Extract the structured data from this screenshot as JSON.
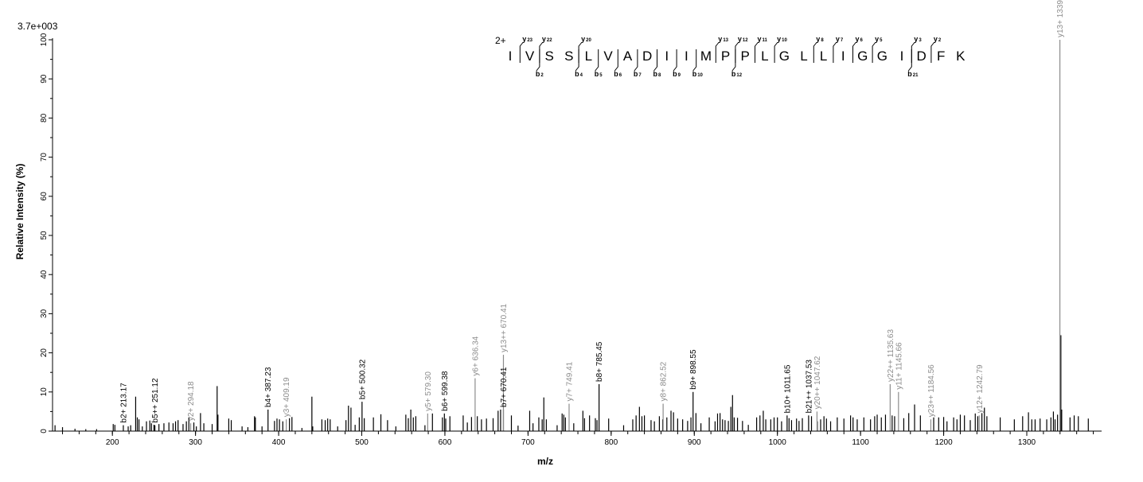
{
  "chart_data": {
    "type": "bar",
    "title": "",
    "scale_label": "3.7e+003",
    "xlabel": "m/z",
    "ylabel": "Relative   Intensity (%)",
    "xlim": [
      128,
      1390
    ],
    "ylim": [
      0,
      100
    ],
    "x_ticks": [
      200,
      300,
      400,
      500,
      600,
      700,
      800,
      900,
      1000,
      1100,
      1200,
      1300
    ],
    "y_ticks": [
      0,
      10,
      20,
      30,
      40,
      50,
      60,
      70,
      80,
      90,
      100
    ],
    "x_minor_step": 20,
    "grid": false,
    "peptide": {
      "charge": "2+",
      "sequence": [
        "I",
        "V",
        "S",
        "S",
        "L",
        "V",
        "A",
        "D",
        "I",
        "I",
        "M",
        "P",
        "P",
        "L",
        "G",
        "L",
        "L",
        "I",
        "G",
        "G",
        "I",
        "D",
        "F",
        "K"
      ],
      "y_ions": [
        {
          "after": 1,
          "label": "y",
          "num": "23"
        },
        {
          "after": 2,
          "label": "y",
          "num": "22"
        },
        {
          "after": 4,
          "label": "y",
          "num": "20"
        },
        {
          "after": 11,
          "label": "y",
          "num": "13"
        },
        {
          "after": 12,
          "label": "y",
          "num": "12"
        },
        {
          "after": 13,
          "label": "y",
          "num": "11"
        },
        {
          "after": 14,
          "label": "y",
          "num": "10"
        },
        {
          "after": 16,
          "label": "y",
          "num": "8"
        },
        {
          "after": 17,
          "label": "y",
          "num": "7"
        },
        {
          "after": 18,
          "label": "y",
          "num": "6"
        },
        {
          "after": 19,
          "label": "y",
          "num": "5"
        },
        {
          "after": 21,
          "label": "y",
          "num": "3"
        },
        {
          "after": 22,
          "label": "y",
          "num": "2"
        }
      ],
      "b_ions": [
        {
          "after": 2,
          "label": "b",
          "num": "2"
        },
        {
          "after": 4,
          "label": "b",
          "num": "4"
        },
        {
          "after": 5,
          "label": "b",
          "num": "5"
        },
        {
          "after": 6,
          "label": "b",
          "num": "6"
        },
        {
          "after": 7,
          "label": "b",
          "num": "7"
        },
        {
          "after": 8,
          "label": "b",
          "num": "8"
        },
        {
          "after": 9,
          "label": "b",
          "num": "9"
        },
        {
          "after": 10,
          "label": "b",
          "num": "10"
        },
        {
          "after": 12,
          "label": "b",
          "num": "12"
        },
        {
          "after": 21,
          "label": "b",
          "num": "21"
        }
      ]
    },
    "annotated_peaks": [
      {
        "mz": 213.17,
        "intensity": 1.5,
        "label": "b2+ 213.17",
        "ion": "b"
      },
      {
        "mz": 251.12,
        "intensity": 1.5,
        "label": "b5++ 251.12",
        "ion": "b"
      },
      {
        "mz": 294.18,
        "intensity": 2.0,
        "label": "y2+ 294.18",
        "ion": "y"
      },
      {
        "mz": 387.23,
        "intensity": 5.5,
        "label": "b4+ 387.23",
        "ion": "b"
      },
      {
        "mz": 409.19,
        "intensity": 3.0,
        "label": "y3+ 409.19",
        "ion": "y"
      },
      {
        "mz": 500.32,
        "intensity": 7.5,
        "label": "b5+ 500.32",
        "ion": "b"
      },
      {
        "mz": 579.3,
        "intensity": 4.5,
        "label": "y5+ 579.30",
        "ion": "y"
      },
      {
        "mz": 599.38,
        "intensity": 4.5,
        "label": "b6+ 599.38",
        "ion": "b"
      },
      {
        "mz": 636.34,
        "intensity": 13.5,
        "label": "y6+ 636.34",
        "ion": "y"
      },
      {
        "mz": 670.41,
        "intensity": 5.5,
        "label": "b7+ 670.41",
        "ion": "b"
      },
      {
        "mz": 670.41,
        "intensity": 19.5,
        "label": "y13++ 670.41",
        "ion": "y"
      },
      {
        "mz": 749.41,
        "intensity": 7.0,
        "label": "y7+ 749.41",
        "ion": "y"
      },
      {
        "mz": 785.45,
        "intensity": 12.0,
        "label": "b8+ 785.45",
        "ion": "b"
      },
      {
        "mz": 862.52,
        "intensity": 7.0,
        "label": "y8+ 862.52",
        "ion": "y"
      },
      {
        "mz": 898.55,
        "intensity": 10.0,
        "label": "b9+ 898.55",
        "ion": "b"
      },
      {
        "mz": 1011.65,
        "intensity": 4.0,
        "label": "b10+ 1011.65",
        "ion": "b"
      },
      {
        "mz": 1037.53,
        "intensity": 4.0,
        "label": "b21++ 1037.53",
        "ion": "b"
      },
      {
        "mz": 1047.62,
        "intensity": 5.0,
        "label": "y20++ 1047.62",
        "ion": "y"
      },
      {
        "mz": 1135.63,
        "intensity": 12.0,
        "label": "y22++ 1135.63",
        "ion": "y"
      },
      {
        "mz": 1145.66,
        "intensity": 10.0,
        "label": "y11+ 1145.66",
        "ion": "y"
      },
      {
        "mz": 1184.56,
        "intensity": 3.0,
        "label": "y23++ 1184.56",
        "ion": "y"
      },
      {
        "mz": 1242.79,
        "intensity": 4.0,
        "label": "y12+ 1242.79",
        "ion": "y"
      },
      {
        "mz": 1339.81,
        "intensity": 100.0,
        "label": "y13+ 1339.81",
        "ion": "y"
      }
    ],
    "peaks": [
      [
        131,
        1.5
      ],
      [
        140,
        1.0
      ],
      [
        155,
        0.6
      ],
      [
        168,
        0.5
      ],
      [
        181,
        0.5
      ],
      [
        201,
        1.8
      ],
      [
        203,
        1.6
      ],
      [
        219,
        1.2
      ],
      [
        222,
        1.5
      ],
      [
        228,
        8.8
      ],
      [
        230,
        3.5
      ],
      [
        232,
        3.0
      ],
      [
        236,
        1.2
      ],
      [
        241,
        2.5
      ],
      [
        245,
        2.7
      ],
      [
        247,
        2.0
      ],
      [
        250,
        1.6
      ],
      [
        256,
        1.8
      ],
      [
        262,
        2.0
      ],
      [
        268,
        2.2
      ],
      [
        273,
        2.0
      ],
      [
        276,
        2.5
      ],
      [
        279,
        2.8
      ],
      [
        285,
        1.8
      ],
      [
        289,
        2.5
      ],
      [
        292,
        3.5
      ],
      [
        298,
        2.2
      ],
      [
        301,
        1.2
      ],
      [
        306,
        4.6
      ],
      [
        310,
        2.0
      ],
      [
        320,
        1.8
      ],
      [
        326,
        11.5
      ],
      [
        327,
        4.2
      ],
      [
        340,
        3.2
      ],
      [
        343,
        2.8
      ],
      [
        356,
        1.2
      ],
      [
        363,
        1.0
      ],
      [
        371,
        3.8
      ],
      [
        372,
        3.5
      ],
      [
        380,
        1.2
      ],
      [
        395,
        2.6
      ],
      [
        398,
        3.2
      ],
      [
        401,
        3.0
      ],
      [
        405,
        2.5
      ],
      [
        413,
        3.3
      ],
      [
        416,
        3.6
      ],
      [
        428,
        0.8
      ],
      [
        440,
        8.8
      ],
      [
        441,
        1.2
      ],
      [
        452,
        3.0
      ],
      [
        456,
        2.8
      ],
      [
        459,
        3.2
      ],
      [
        462,
        3.0
      ],
      [
        471,
        1.2
      ],
      [
        481,
        2.8
      ],
      [
        484,
        6.5
      ],
      [
        487,
        6.0
      ],
      [
        492,
        1.6
      ],
      [
        497,
        3.5
      ],
      [
        503,
        3.3
      ],
      [
        514,
        3.5
      ],
      [
        523,
        4.3
      ],
      [
        531,
        2.8
      ],
      [
        541,
        1.2
      ],
      [
        553,
        4.2
      ],
      [
        556,
        3.3
      ],
      [
        559,
        5.5
      ],
      [
        562,
        3.5
      ],
      [
        565,
        3.8
      ],
      [
        576,
        1.5
      ],
      [
        585,
        4.5
      ],
      [
        597,
        3.5
      ],
      [
        601,
        3.2
      ],
      [
        606,
        3.8
      ],
      [
        622,
        4.0
      ],
      [
        627,
        2.2
      ],
      [
        632,
        3.6
      ],
      [
        639,
        3.8
      ],
      [
        644,
        3.0
      ],
      [
        650,
        3.2
      ],
      [
        658,
        3.3
      ],
      [
        664,
        5.2
      ],
      [
        667,
        5.5
      ],
      [
        680,
        4.0
      ],
      [
        688,
        1.4
      ],
      [
        702,
        5.2
      ],
      [
        706,
        2.0
      ],
      [
        713,
        3.5
      ],
      [
        717,
        3.0
      ],
      [
        719,
        8.6
      ],
      [
        722,
        3.0
      ],
      [
        735,
        1.5
      ],
      [
        741,
        4.5
      ],
      [
        743,
        4.2
      ],
      [
        745,
        3.5
      ],
      [
        755,
        2.0
      ],
      [
        766,
        5.2
      ],
      [
        768,
        3.3
      ],
      [
        774,
        4.0
      ],
      [
        781,
        3.3
      ],
      [
        783,
        2.8
      ],
      [
        797,
        3.2
      ],
      [
        815,
        1.5
      ],
      [
        826,
        3.0
      ],
      [
        830,
        4.0
      ],
      [
        834,
        6.2
      ],
      [
        837,
        3.8
      ],
      [
        840,
        4.0
      ],
      [
        848,
        2.8
      ],
      [
        852,
        2.5
      ],
      [
        858,
        3.8
      ],
      [
        862,
        3.0
      ],
      [
        867,
        3.5
      ],
      [
        872,
        5.2
      ],
      [
        875,
        4.8
      ],
      [
        880,
        3.2
      ],
      [
        886,
        3.0
      ],
      [
        892,
        2.6
      ],
      [
        896,
        3.5
      ],
      [
        902,
        4.6
      ],
      [
        908,
        2.0
      ],
      [
        918,
        3.5
      ],
      [
        925,
        2.5
      ],
      [
        928,
        4.5
      ],
      [
        931,
        4.6
      ],
      [
        934,
        3.0
      ],
      [
        937,
        2.8
      ],
      [
        941,
        2.6
      ],
      [
        944,
        6.2
      ],
      [
        946,
        9.2
      ],
      [
        948,
        3.5
      ],
      [
        952,
        3.4
      ],
      [
        958,
        2.6
      ],
      [
        965,
        1.6
      ],
      [
        975,
        3.5
      ],
      [
        979,
        4.0
      ],
      [
        983,
        5.2
      ],
      [
        986,
        3.0
      ],
      [
        992,
        3.0
      ],
      [
        996,
        3.5
      ],
      [
        1000,
        3.5
      ],
      [
        1005,
        2.5
      ],
      [
        1014,
        3.3
      ],
      [
        1017,
        2.8
      ],
      [
        1023,
        3.2
      ],
      [
        1026,
        2.6
      ],
      [
        1030,
        3.3
      ],
      [
        1041,
        3.8
      ],
      [
        1048,
        2.5
      ],
      [
        1052,
        3.0
      ],
      [
        1056,
        3.8
      ],
      [
        1059,
        3.2
      ],
      [
        1064,
        2.5
      ],
      [
        1072,
        3.5
      ],
      [
        1080,
        3.2
      ],
      [
        1088,
        4.0
      ],
      [
        1091,
        3.5
      ],
      [
        1096,
        3.0
      ],
      [
        1104,
        3.5
      ],
      [
        1112,
        3.0
      ],
      [
        1117,
        3.8
      ],
      [
        1120,
        4.2
      ],
      [
        1125,
        3.5
      ],
      [
        1130,
        4.2
      ],
      [
        1138,
        4.0
      ],
      [
        1141,
        3.8
      ],
      [
        1152,
        3.3
      ],
      [
        1158,
        4.6
      ],
      [
        1165,
        6.8
      ],
      [
        1172,
        4.0
      ],
      [
        1188,
        3.5
      ],
      [
        1194,
        3.5
      ],
      [
        1200,
        3.6
      ],
      [
        1204,
        2.5
      ],
      [
        1212,
        3.5
      ],
      [
        1216,
        3.0
      ],
      [
        1220,
        4.2
      ],
      [
        1225,
        4.0
      ],
      [
        1232,
        2.8
      ],
      [
        1238,
        4.5
      ],
      [
        1241,
        3.8
      ],
      [
        1246,
        4.6
      ],
      [
        1249,
        6.0
      ],
      [
        1252,
        3.8
      ],
      [
        1268,
        3.5
      ],
      [
        1285,
        3.0
      ],
      [
        1295,
        3.8
      ],
      [
        1302,
        4.8
      ],
      [
        1306,
        3.0
      ],
      [
        1310,
        3.0
      ],
      [
        1316,
        3.2
      ],
      [
        1324,
        3.0
      ],
      [
        1329,
        3.5
      ],
      [
        1332,
        5.0
      ],
      [
        1334,
        3.0
      ],
      [
        1337,
        4.2
      ],
      [
        1341,
        24.5
      ],
      [
        1342,
        5.5
      ],
      [
        1352,
        3.5
      ],
      [
        1357,
        4.0
      ],
      [
        1362,
        3.8
      ],
      [
        1374,
        3.2
      ]
    ]
  }
}
